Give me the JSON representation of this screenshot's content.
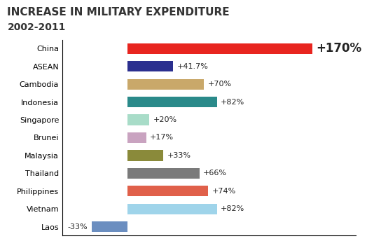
{
  "chart_data": {
    "type": "bar",
    "title": "INCREASE IN MILITARY EXPENDITURE",
    "subtitle": "2002-2011",
    "orientation": "horizontal",
    "categories": [
      "China",
      "ASEAN",
      "Cambodia",
      "Indonesia",
      "Singapore",
      "Brunei",
      "Malaysia",
      "Thailand",
      "Philippines",
      "Vietnam",
      "Laos"
    ],
    "values": [
      170,
      41.7,
      70,
      82,
      20,
      17,
      33,
      66,
      74,
      82,
      -33
    ],
    "value_labels": [
      "+170%",
      "+41.7%",
      "+70%",
      "+82%",
      "+20%",
      "+17%",
      "+33%",
      "+66%",
      "+74%",
      "+82%",
      "-33%"
    ],
    "colors": [
      "#e8251f",
      "#2b2f8f",
      "#c9a86a",
      "#2a8a8a",
      "#a8dcc8",
      "#c9a3c0",
      "#8a8a3a",
      "#7a7a7a",
      "#e0604a",
      "#9fd4ea",
      "#6b8ec0"
    ],
    "xlim": [
      -60,
      210
    ],
    "data_labels": true,
    "tick_labels": "y",
    "grid": false
  }
}
